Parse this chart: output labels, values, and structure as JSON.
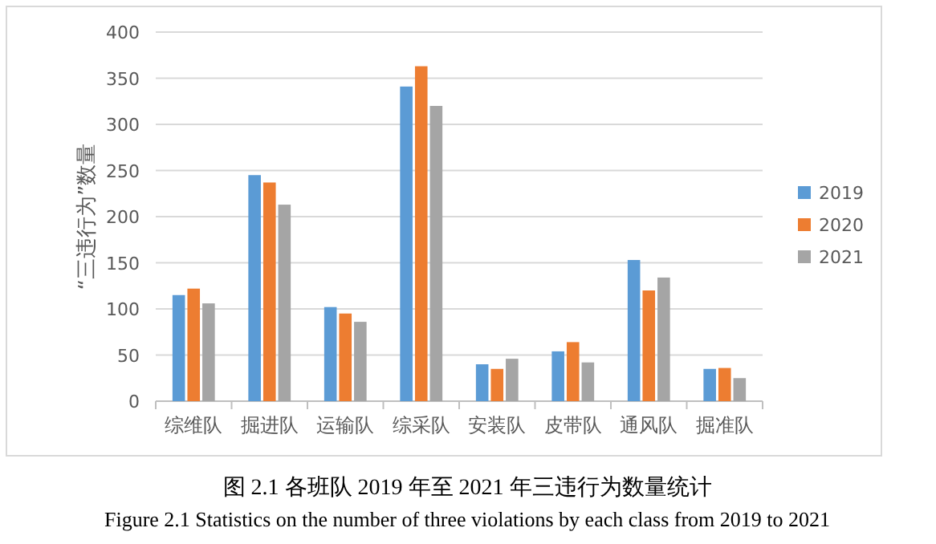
{
  "chart_data": {
    "type": "bar",
    "categories": [
      "综维队",
      "掘进队",
      "运输队",
      "综采队",
      "安装队",
      "皮带队",
      "通风队",
      "掘准队"
    ],
    "series": [
      {
        "name": "2019",
        "color": "#5b9bd5",
        "values": [
          115,
          245,
          102,
          341,
          40,
          54,
          153,
          35
        ]
      },
      {
        "name": "2020",
        "color": "#ed7d31",
        "values": [
          122,
          237,
          95,
          363,
          35,
          64,
          120,
          36
        ]
      },
      {
        "name": "2021",
        "color": "#a5a5a5",
        "values": [
          106,
          213,
          86,
          320,
          46,
          42,
          134,
          25
        ]
      }
    ],
    "ylabel": "“三违行为”数量",
    "ylim": [
      0,
      400
    ],
    "yticks": [
      0,
      50,
      100,
      150,
      200,
      250,
      300,
      350,
      400
    ],
    "grid": "y",
    "legend": "right",
    "annotations": [
      "图 2.1  各班队 2019 年至 2021 年三违行为数量统计",
      "Figure 2.1 Statistics on the number of three violations by each class from 2019 to 2021"
    ]
  }
}
